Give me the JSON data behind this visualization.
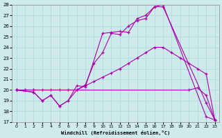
{
  "xlabel": "Windchill (Refroidissement éolien,°C)",
  "xlim": [
    -0.5,
    23.5
  ],
  "ylim": [
    17,
    28
  ],
  "xticks": [
    0,
    1,
    2,
    3,
    4,
    5,
    6,
    7,
    8,
    9,
    10,
    11,
    12,
    13,
    14,
    15,
    16,
    17,
    18,
    19,
    20,
    21,
    22,
    23
  ],
  "yticks": [
    17,
    18,
    19,
    20,
    21,
    22,
    23,
    24,
    25,
    26,
    27,
    28
  ],
  "bg_color": "#ceeaea",
  "line_color": "#aa00aa",
  "grid_color": "#aad8d8",
  "lines": [
    {
      "x": [
        0,
        1,
        2,
        20,
        21,
        22,
        23
      ],
      "y": [
        20,
        20,
        20,
        20,
        20.2,
        19.5,
        17.2
      ]
    },
    {
      "x": [
        0,
        1,
        2,
        3,
        4,
        5,
        6,
        7,
        8,
        9,
        10,
        11,
        12,
        13,
        14,
        15,
        16,
        17,
        18,
        19,
        20,
        21,
        22,
        23
      ],
      "y": [
        20,
        20,
        20,
        20,
        20,
        20,
        20,
        20,
        20.4,
        20.8,
        21.2,
        21.6,
        22.0,
        22.5,
        23.0,
        23.5,
        24.0,
        24.0,
        23.5,
        23.0,
        22.5,
        22.0,
        21.5,
        17.2
      ]
    },
    {
      "x": [
        0,
        2,
        3,
        4,
        5,
        6,
        7,
        8,
        9,
        10,
        11,
        12,
        13,
        14,
        15,
        16,
        17,
        22,
        23
      ],
      "y": [
        20,
        19.8,
        19.0,
        19.5,
        18.5,
        19.0,
        20.0,
        20.5,
        22.5,
        23.5,
        25.3,
        25.2,
        26.0,
        26.5,
        26.7,
        27.8,
        27.8,
        18.8,
        17.2
      ]
    },
    {
      "x": [
        0,
        2,
        3,
        4,
        5,
        6,
        7,
        8,
        10,
        11,
        12,
        13,
        14,
        15,
        16,
        17,
        22,
        23
      ],
      "y": [
        20,
        19.8,
        19.0,
        19.5,
        18.5,
        19.0,
        20.4,
        20.3,
        25.3,
        25.4,
        25.5,
        25.4,
        26.7,
        27.0,
        27.8,
        28.0,
        17.5,
        17.2
      ]
    }
  ]
}
